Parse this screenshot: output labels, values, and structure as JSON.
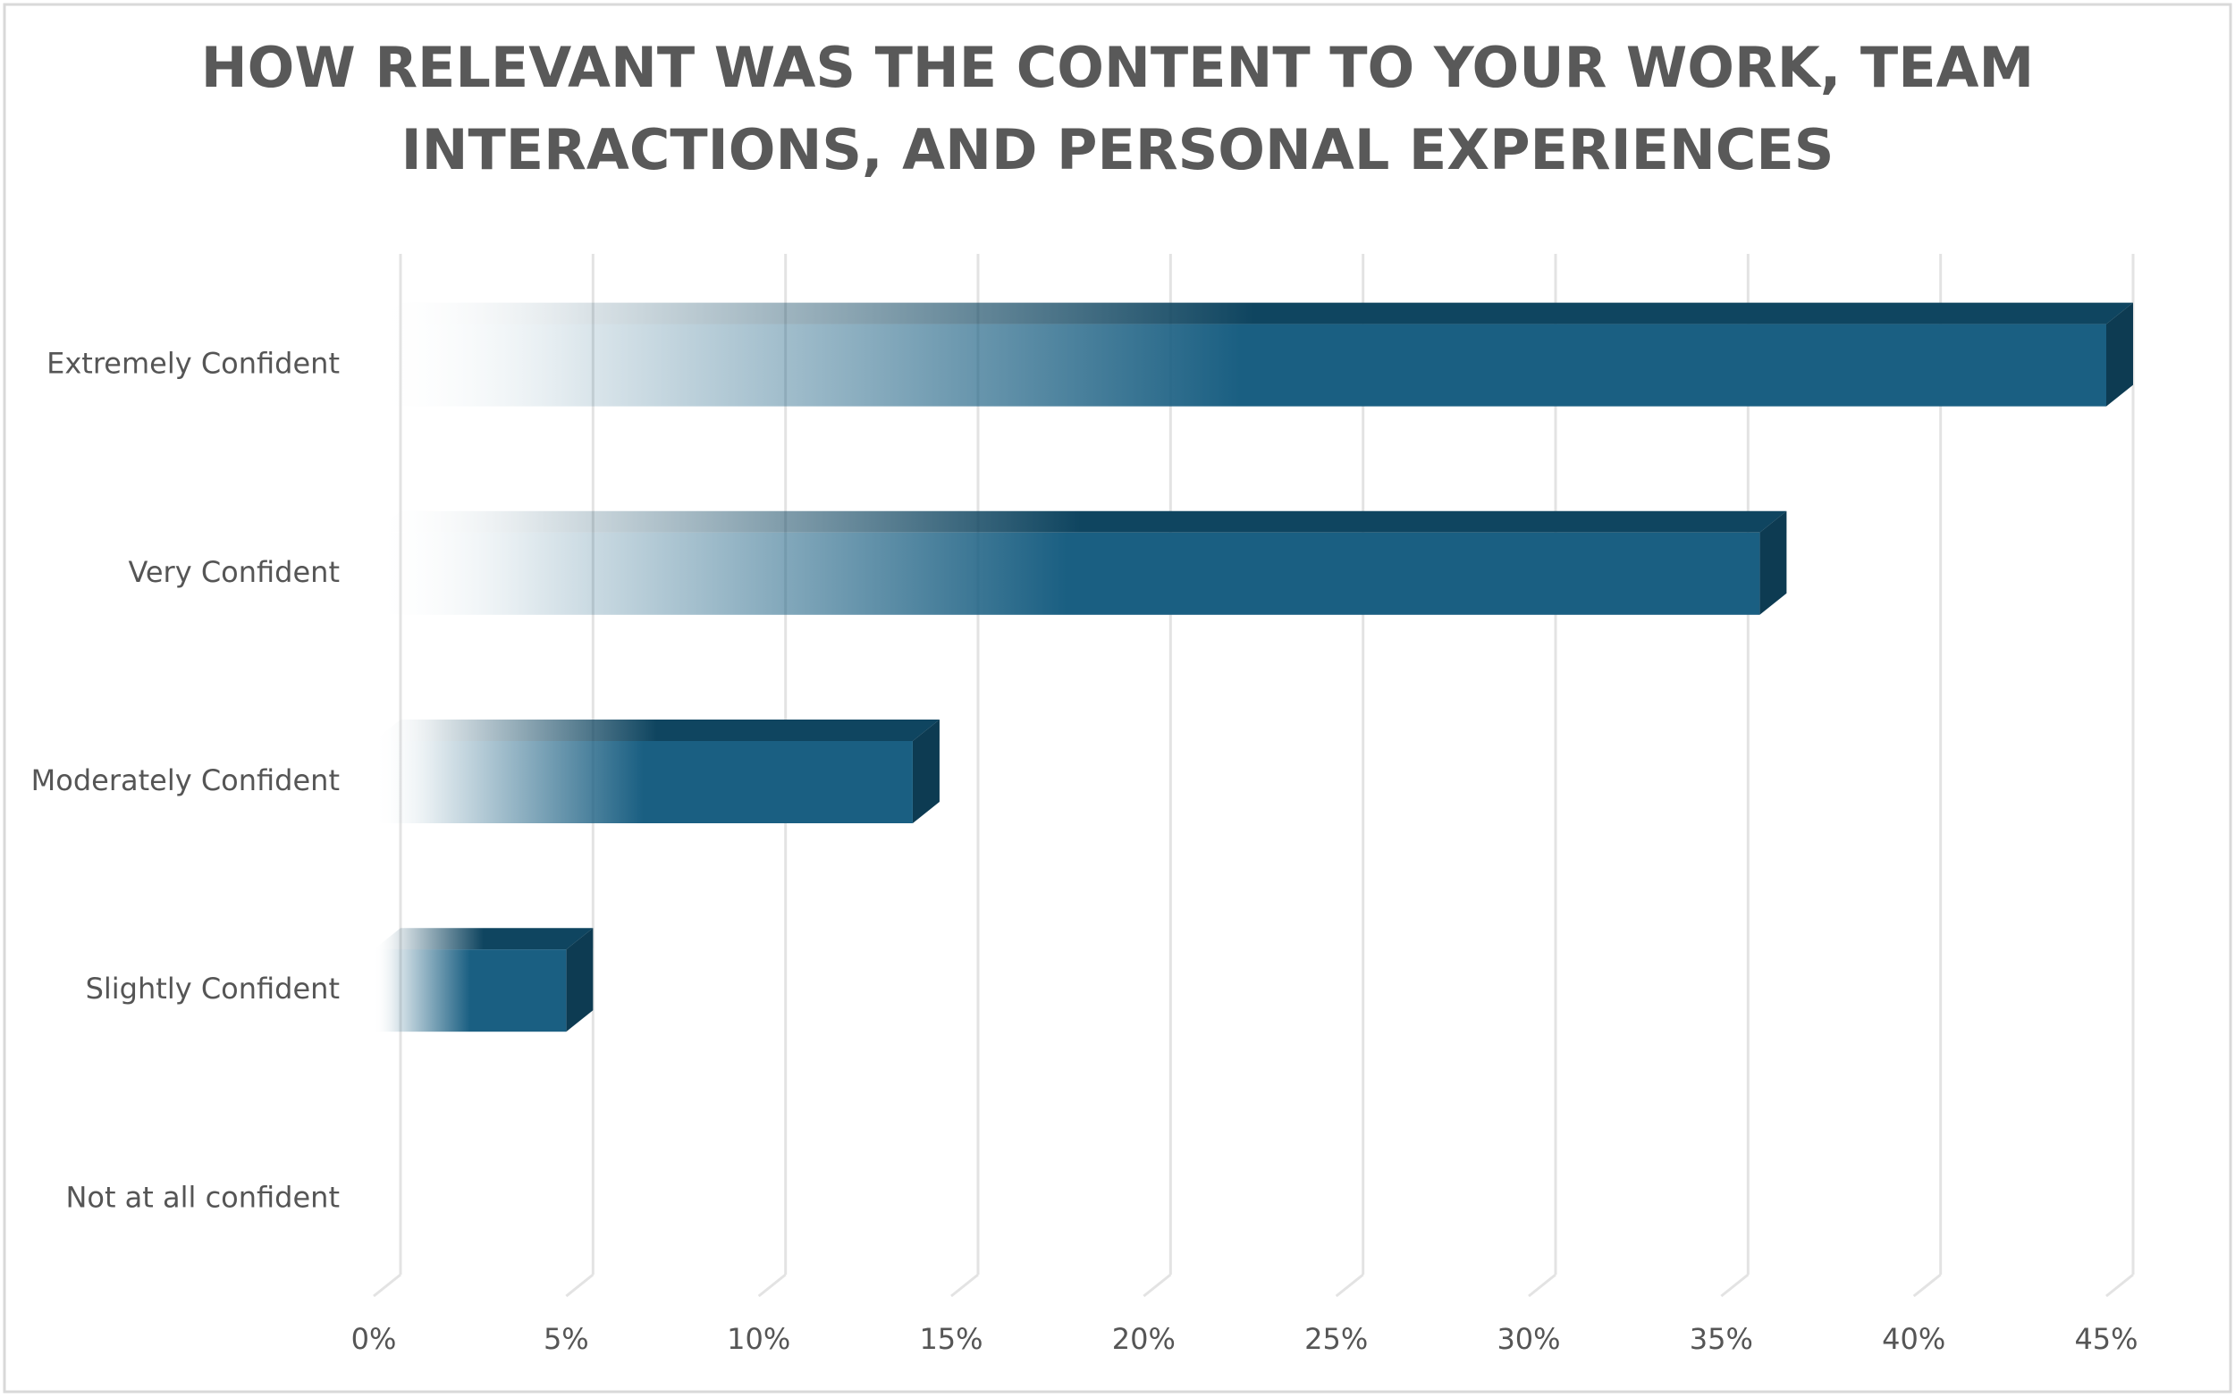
{
  "chart_data": {
    "type": "bar",
    "orientation": "horizontal",
    "title": "HOW RELEVANT WAS THE CONTENT TO YOUR WORK, TEAM INTERACTIONS, AND PERSONAL EXPERIENCES",
    "categories": [
      "Extremely Confident",
      "Very Confident",
      "Moderately Confident",
      "Slightly Confident",
      "Not at all confident"
    ],
    "values": [
      45,
      36,
      14,
      5,
      0
    ],
    "color": "#1a5f82",
    "xlim": [
      0,
      45
    ],
    "xticks": [
      {
        "value": 0,
        "label": "0%"
      },
      {
        "value": 5,
        "label": "5%"
      },
      {
        "value": 10,
        "label": "10%"
      },
      {
        "value": 15,
        "label": "15%"
      },
      {
        "value": 20,
        "label": "20%"
      },
      {
        "value": 25,
        "label": "25%"
      },
      {
        "value": 30,
        "label": "30%"
      },
      {
        "value": 35,
        "label": "35%"
      },
      {
        "value": 40,
        "label": "40%"
      },
      {
        "value": 45,
        "label": "45%"
      }
    ],
    "grid": true
  }
}
